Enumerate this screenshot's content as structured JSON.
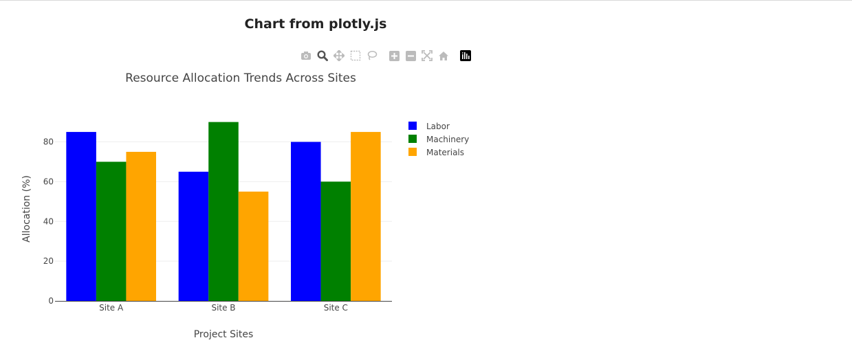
{
  "page": {
    "heading": "Chart from plotly.js"
  },
  "modebar": {
    "buttons": [
      "camera-icon",
      "zoom-icon",
      "pan-icon",
      "box-select-icon",
      "lasso-icon",
      "zoom-in-icon",
      "zoom-out-icon",
      "autoscale-icon",
      "reset-axes-icon",
      "plotly-logo-icon"
    ]
  },
  "chart_data": {
    "type": "bar",
    "title": "Resource Allocation Trends Across Sites",
    "xlabel": "Project Sites",
    "ylabel": "Allocation (%)",
    "categories": [
      "Site A",
      "Site B",
      "Site C"
    ],
    "ylim": [
      0,
      94.7
    ],
    "yticks": [
      0,
      20,
      40,
      60,
      80
    ],
    "grid": true,
    "legend_position": "top-right",
    "barmode": "group",
    "series": [
      {
        "name": "Labor",
        "values": [
          85,
          65,
          80
        ],
        "color": "#0000ff"
      },
      {
        "name": "Machinery",
        "values": [
          70,
          90,
          60
        ],
        "color": "#008000"
      },
      {
        "name": "Materials",
        "values": [
          75,
          55,
          85
        ],
        "color": "#ffa500"
      }
    ]
  }
}
